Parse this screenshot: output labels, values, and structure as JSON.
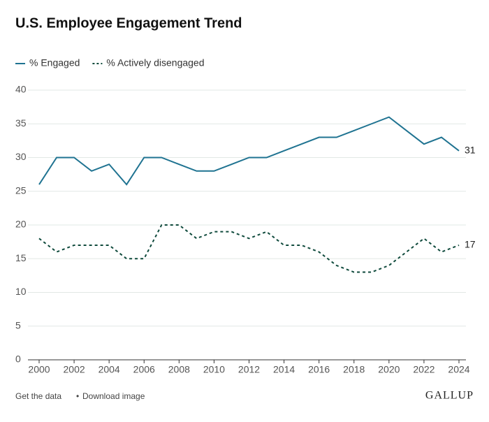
{
  "chart_data": {
    "type": "line",
    "title": "U.S. Employee Engagement Trend",
    "x": [
      2000,
      2001,
      2002,
      2003,
      2004,
      2005,
      2006,
      2007,
      2008,
      2009,
      2010,
      2011,
      2012,
      2013,
      2014,
      2015,
      2016,
      2017,
      2018,
      2019,
      2020,
      2021,
      2022,
      2023,
      2024
    ],
    "series": [
      {
        "name": "% Engaged",
        "color": "#1f7391",
        "line_style": "solid",
        "values": [
          26,
          30,
          30,
          28,
          29,
          26,
          30,
          30,
          29,
          28,
          28,
          29,
          30,
          30,
          31,
          32,
          33,
          33,
          34,
          35,
          36,
          34,
          32,
          33,
          31
        ]
      },
      {
        "name": "% Actively disengaged",
        "color": "#0f4a3c",
        "line_style": "dashed",
        "values": [
          18,
          16,
          17,
          17,
          17,
          15,
          15,
          20,
          20,
          18,
          19,
          19,
          18,
          19,
          17,
          17,
          16,
          14,
          13,
          13,
          14,
          16,
          18,
          16,
          17
        ]
      }
    ],
    "xlim": [
      2000,
      2024
    ],
    "xticks": [
      2000,
      2002,
      2004,
      2006,
      2008,
      2010,
      2012,
      2014,
      2016,
      2018,
      2020,
      2022,
      2024
    ],
    "ylim": [
      0,
      40
    ],
    "yticks": [
      0,
      5,
      10,
      15,
      20,
      25,
      30,
      35,
      40
    ],
    "grid": true,
    "end_labels": true,
    "links": [
      "Get the data",
      "Download image"
    ],
    "logo": "GALLUP"
  }
}
